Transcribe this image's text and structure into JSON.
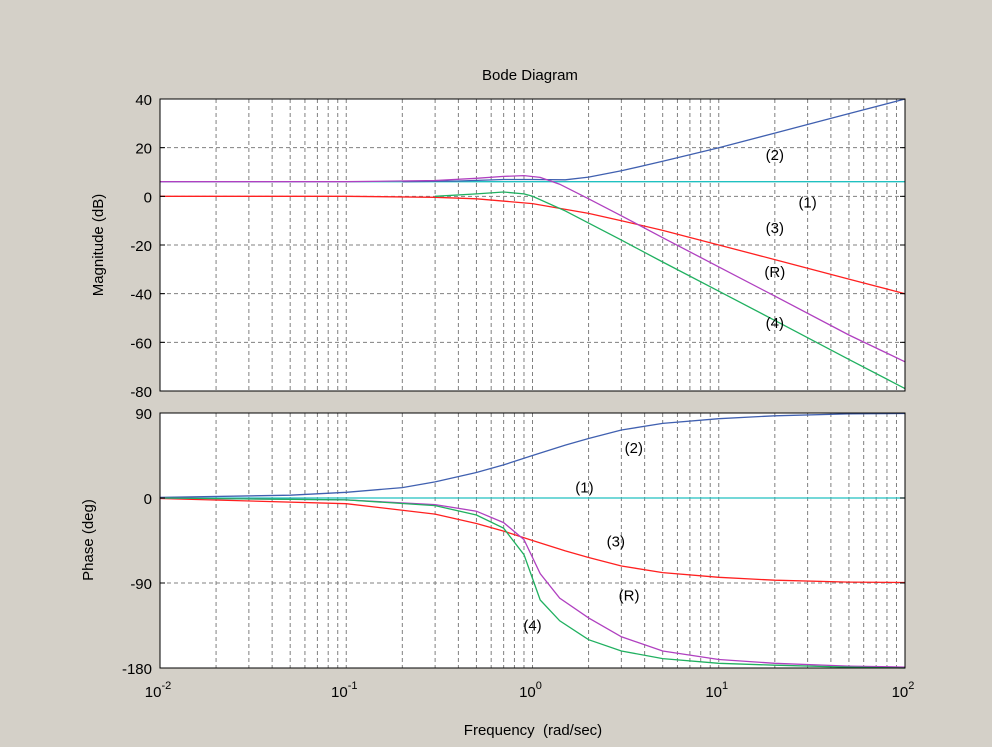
{
  "chart_data": {
    "type": "line",
    "title": "Bode Diagram",
    "xlabel": "Frequency  (rad/sec)",
    "xscale": "log",
    "xlim": [
      0.01,
      100
    ],
    "x_ticks": [
      {
        "base": "10",
        "exp": "-2"
      },
      {
        "base": "10",
        "exp": "-1"
      },
      {
        "base": "10",
        "exp": "0"
      },
      {
        "base": "10",
        "exp": "1"
      },
      {
        "base": "10",
        "exp": "2"
      }
    ],
    "grid": true,
    "colors": {
      "background": "#d4d0c8",
      "axes": "#ffffff",
      "grid": "#808080",
      "blue": "#4060b0",
      "cyan": "#20c0c0",
      "red": "#ff2020",
      "magenta": "#b040c0",
      "green": "#20b060"
    },
    "magnitude": {
      "ylabel": "Magnitude (dB)",
      "ylim": [
        -80,
        40
      ],
      "yticks": [
        "40",
        "20",
        "0",
        "-20",
        "-40",
        "-60",
        "-80"
      ],
      "series": [
        {
          "label": "(1)",
          "color": "cyan",
          "x": [
            0.01,
            100
          ],
          "y": [
            6,
            6
          ]
        },
        {
          "label": "(2)",
          "color": "blue",
          "x": [
            0.2,
            0.4,
            0.7,
            1,
            1.5,
            2,
            3,
            5,
            10,
            20,
            50,
            100
          ],
          "y": [
            6,
            6.3,
            6.9,
            6.9,
            6.8,
            7.9,
            10.5,
            14.4,
            20,
            26,
            34,
            40
          ]
        },
        {
          "label": "(3)",
          "color": "red",
          "x": [
            0.01,
            0.1,
            0.3,
            0.5,
            1,
            2,
            3,
            5,
            10,
            20,
            50,
            100
          ],
          "y": [
            0,
            0,
            -0.4,
            -1,
            -3,
            -7,
            -10,
            -14,
            -20,
            -26,
            -34,
            -40
          ]
        },
        {
          "label": "(R)",
          "color": "magenta",
          "x": [
            0.01,
            0.1,
            0.3,
            0.5,
            0.7,
            0.9,
            1.1,
            1.4,
            2,
            3,
            5,
            10,
            20,
            50,
            100
          ],
          "y": [
            6,
            6,
            6.5,
            7.4,
            8.2,
            8.5,
            7.8,
            5,
            -1,
            -8,
            -17,
            -29,
            -41,
            -57,
            -68
          ]
        },
        {
          "label": "(4)",
          "color": "green",
          "x": [
            0.3,
            0.5,
            0.7,
            0.9,
            1,
            1.5,
            2,
            3,
            5,
            10,
            20,
            50,
            100
          ],
          "y": [
            0,
            1,
            1.8,
            1,
            0,
            -6,
            -11,
            -18,
            -27,
            -39,
            -51,
            -67,
            -79
          ]
        }
      ],
      "annotations": [
        {
          "text": "(2)",
          "x": 20,
          "y": 17
        },
        {
          "text": "(1)",
          "x": 30,
          "y": -2.5
        },
        {
          "text": "(3)",
          "x": 20,
          "y": -13
        },
        {
          "text": "(R)",
          "x": 20,
          "y": -31
        },
        {
          "text": "(4)",
          "x": 20,
          "y": -52
        }
      ]
    },
    "phase": {
      "ylabel": "Phase (deg)",
      "ylim": [
        -180,
        90
      ],
      "yticks": [
        "90",
        "0",
        "-90",
        "-180"
      ],
      "series": [
        {
          "label": "(1)",
          "color": "cyan",
          "x": [
            0.01,
            100
          ],
          "y": [
            0,
            0
          ]
        },
        {
          "label": "(2)",
          "color": "blue",
          "x": [
            0.01,
            0.05,
            0.1,
            0.2,
            0.3,
            0.5,
            0.7,
            1,
            1.5,
            2,
            3,
            5,
            10,
            20,
            50,
            100
          ],
          "y": [
            0.6,
            3,
            6,
            11,
            17,
            27,
            35,
            45,
            56,
            63,
            72,
            79,
            84,
            87,
            89,
            89.5
          ]
        },
        {
          "label": "(3)",
          "color": "red",
          "x": [
            0.01,
            0.1,
            0.3,
            0.5,
            0.7,
            1,
            1.5,
            2,
            3,
            5,
            10,
            20,
            50,
            100
          ],
          "y": [
            -0.5,
            -6,
            -17,
            -27,
            -35,
            -45,
            -56,
            -63,
            -72,
            -79,
            -84,
            -87,
            -89,
            -89.5
          ]
        },
        {
          "label": "(R)",
          "color": "magenta",
          "x": [
            0.01,
            0.1,
            0.3,
            0.5,
            0.7,
            0.9,
            1.1,
            1.4,
            2,
            3,
            5,
            10,
            20,
            50,
            100
          ],
          "y": [
            0,
            -2,
            -7,
            -14,
            -26,
            -44,
            -80,
            -106,
            -127,
            -147,
            -162,
            -171,
            -175,
            -178,
            -179
          ]
        },
        {
          "label": "(4)",
          "color": "green",
          "x": [
            0.01,
            0.1,
            0.3,
            0.5,
            0.7,
            0.9,
            1.1,
            1.4,
            2,
            3,
            5,
            10,
            20,
            50,
            100
          ],
          "y": [
            0,
            -2,
            -8,
            -18,
            -32,
            -60,
            -108,
            -130,
            -150,
            -162,
            -170,
            -175,
            -177,
            -179,
            -180
          ]
        }
      ],
      "annotations": [
        {
          "text": "(2)",
          "x": 3.5,
          "y": 53
        },
        {
          "text": "(1)",
          "x": 1.9,
          "y": 11
        },
        {
          "text": "(3)",
          "x": 2.8,
          "y": -46
        },
        {
          "text": "(R)",
          "x": 3.3,
          "y": -103
        },
        {
          "text": "(4)",
          "x": 1,
          "y": -135
        }
      ]
    }
  }
}
